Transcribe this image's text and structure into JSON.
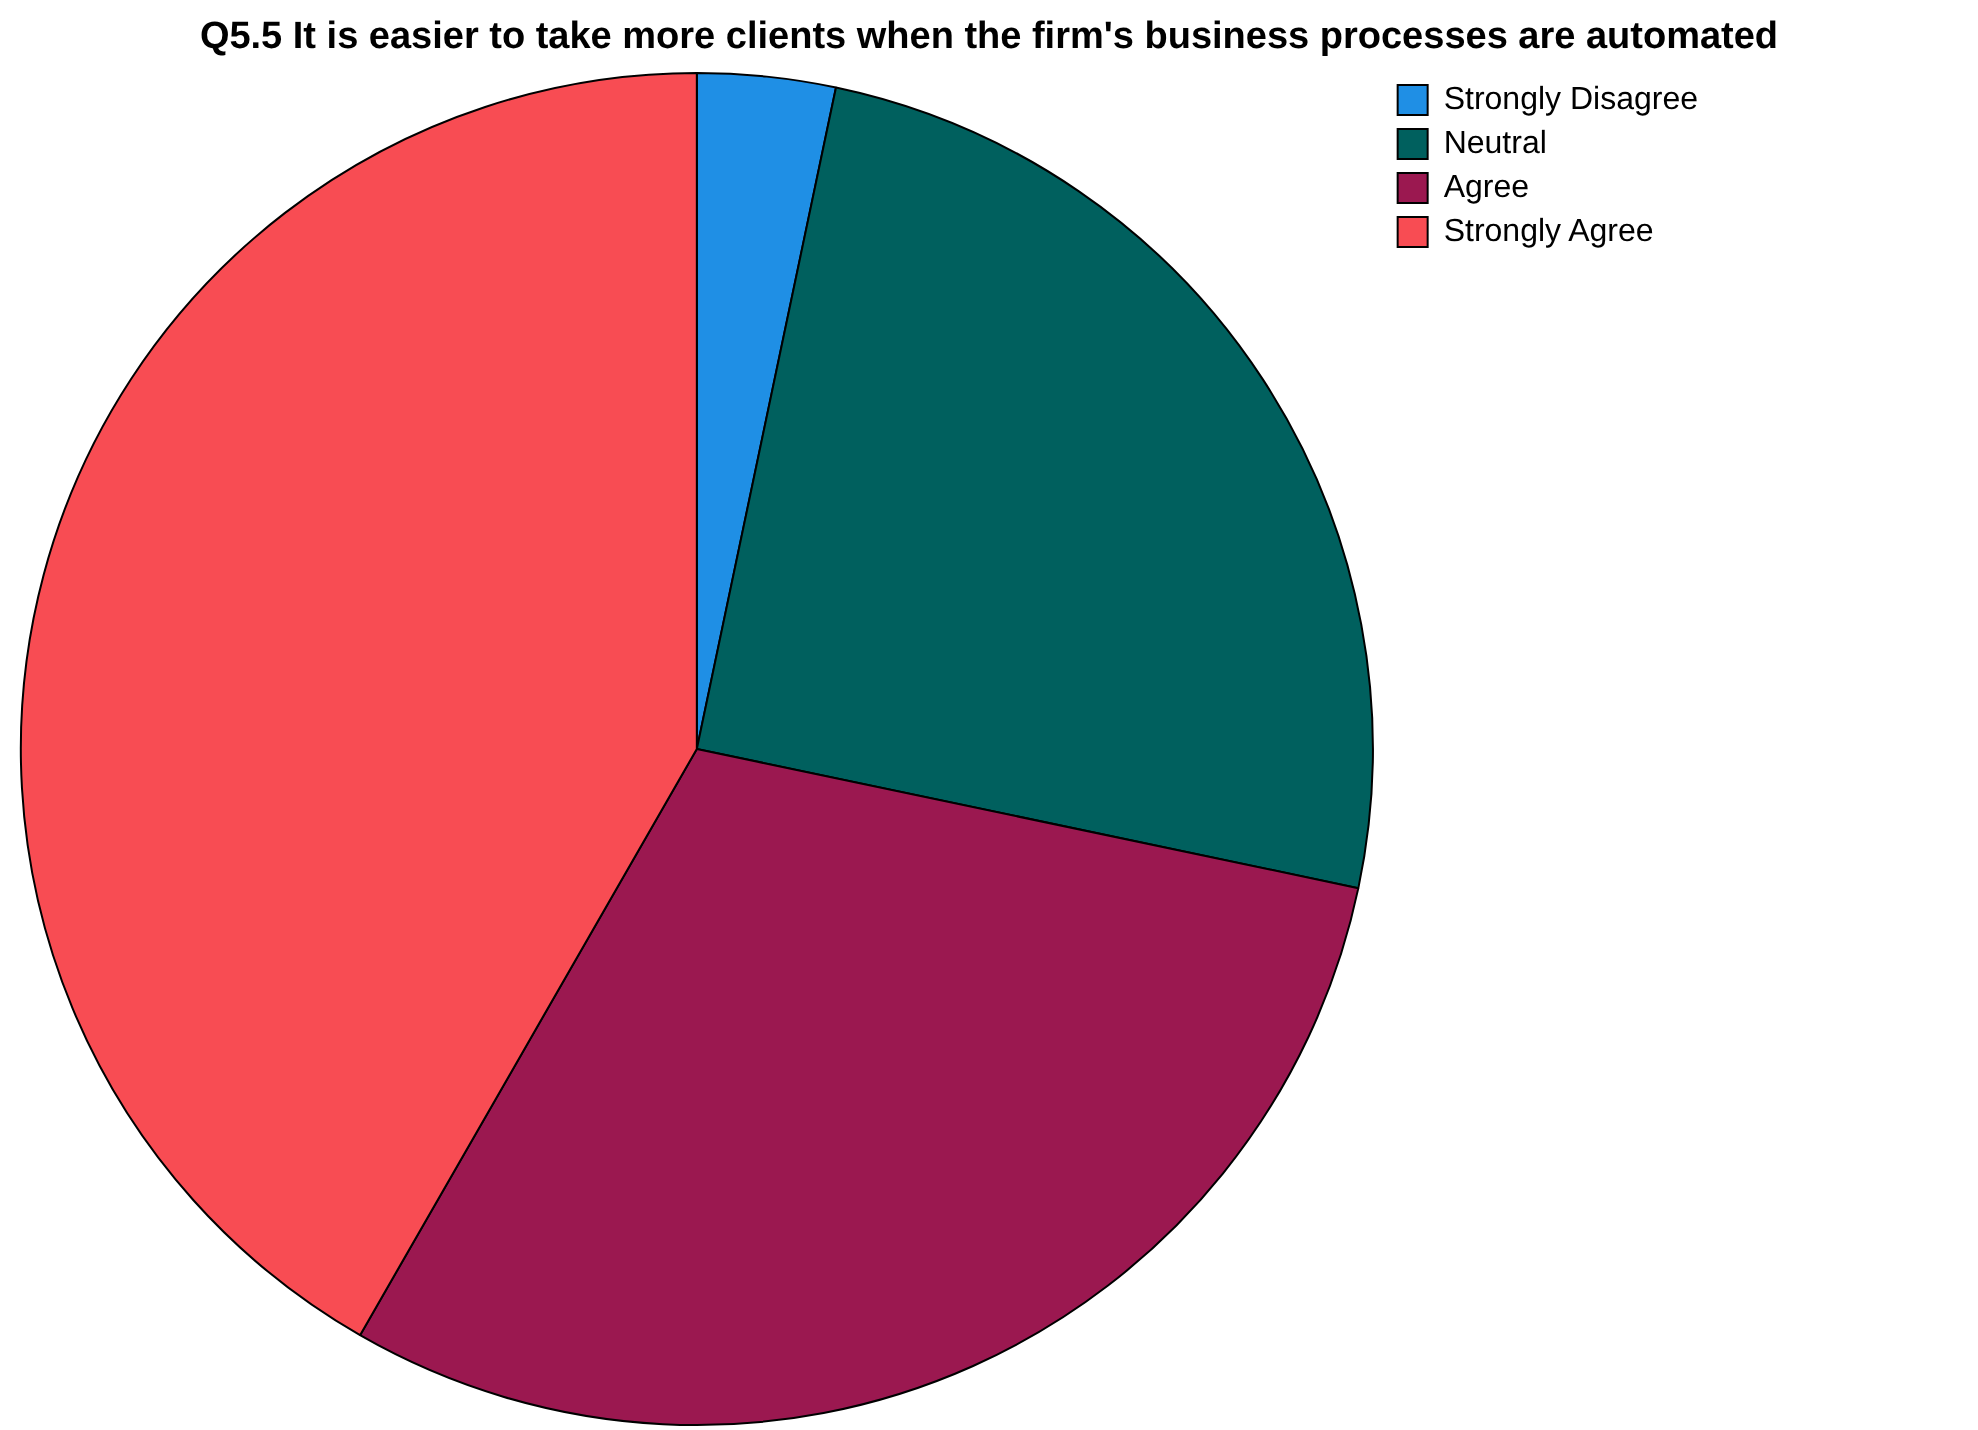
{
  "chart_data": {
    "type": "pie",
    "title": "Q5.5 It is easier to take more clients when the firm's business processes are automated",
    "categories": [
      "Strongly Disagree",
      "Neutral",
      "Agree",
      "Strongly Agree"
    ],
    "values": [
      3.3,
      25,
      30,
      41.7
    ],
    "colors": [
      "#1f8fe5",
      "#00605e",
      "#9b1850",
      "#f84c53"
    ],
    "legend": "top right"
  }
}
